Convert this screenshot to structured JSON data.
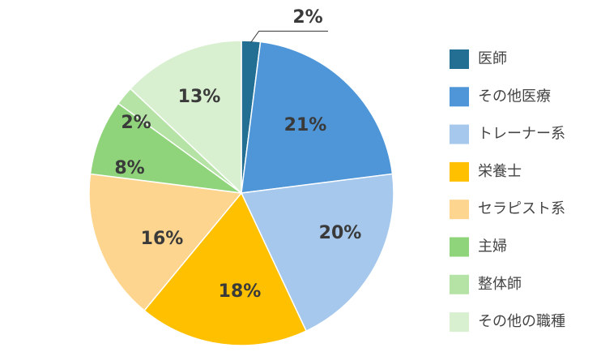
{
  "chart_data": {
    "type": "pie",
    "categories": [
      "医師",
      "その他医療",
      "トレーナー系",
      "栄養士",
      "セラピスト系",
      "主婦",
      "整体師",
      "その他の職種"
    ],
    "values": [
      2,
      21,
      20,
      18,
      16,
      8,
      2,
      13
    ],
    "value_labels": [
      "2%",
      "21%",
      "20%",
      "18%",
      "16%",
      "8%",
      "2%",
      "13%"
    ],
    "colors": [
      "#236f94",
      "#4f96d8",
      "#a6c8ec",
      "#ffc000",
      "#fdd58e",
      "#8fd47a",
      "#b5e3a5",
      "#d8f0d0"
    ],
    "legend": "right"
  }
}
